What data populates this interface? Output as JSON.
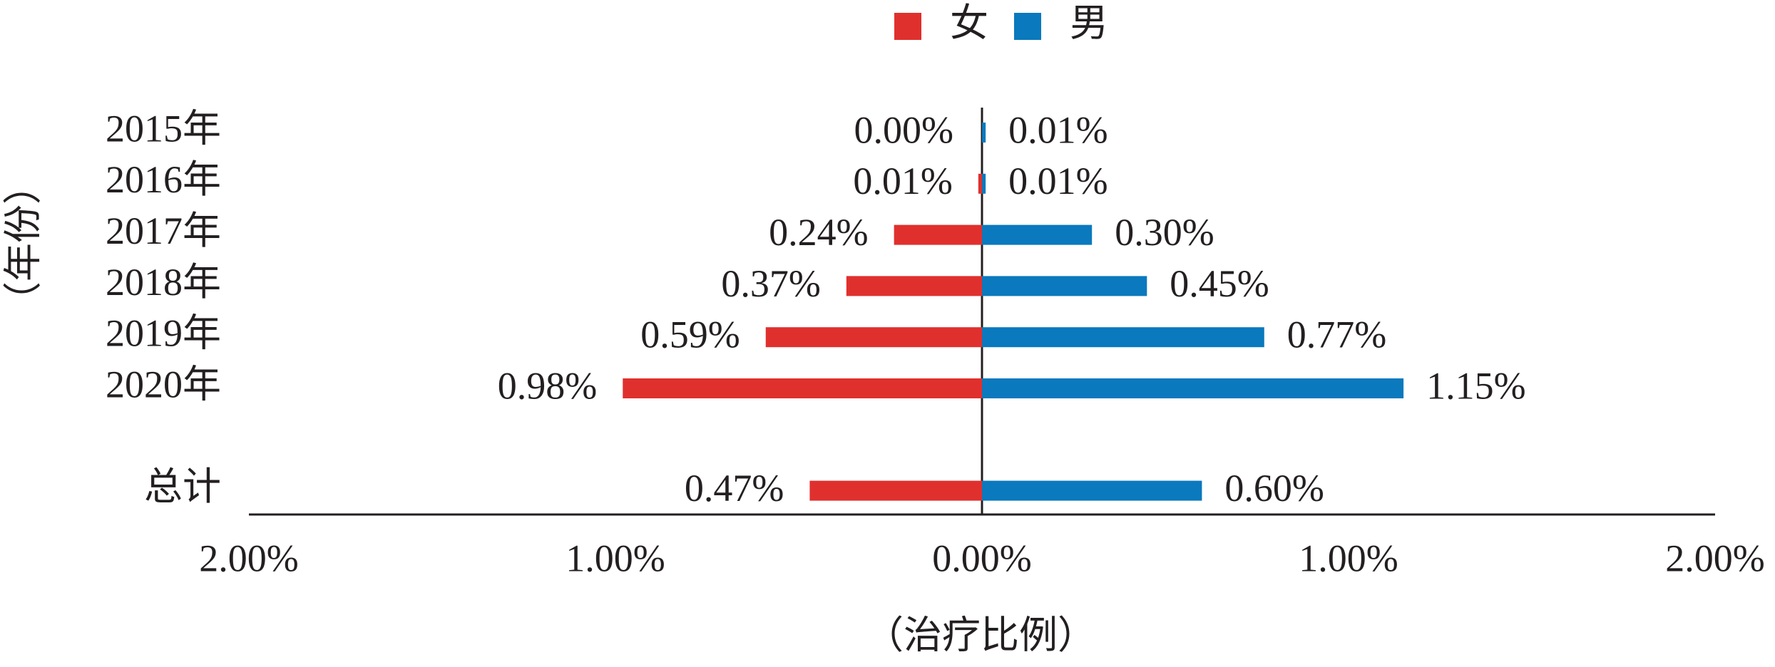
{
  "chart_data": {
    "type": "butterfly",
    "legend": "top",
    "xlabel": "（治疗比例）",
    "ylabel": "（年份）",
    "categories": [
      "2015年",
      "2016年",
      "2017年",
      "2018年",
      "2019年",
      "2020年",
      null,
      "总计"
    ],
    "series": [
      {
        "name": "女",
        "color": "#e0302d",
        "values": [
          0.0,
          0.01,
          0.24,
          0.37,
          0.59,
          0.98,
          null,
          0.47
        ],
        "value_labels": [
          "0.00%",
          "0.01%",
          "0.24%",
          "0.37%",
          "0.59%",
          "0.98%",
          null,
          "0.47%"
        ]
      },
      {
        "name": "男",
        "color": "#0a79bd",
        "values": [
          0.01,
          0.01,
          0.3,
          0.45,
          0.77,
          1.15,
          null,
          0.6
        ],
        "value_labels": [
          "0.01%",
          "0.01%",
          "0.30%",
          "0.45%",
          "0.77%",
          "1.15%",
          null,
          "0.60%"
        ]
      }
    ],
    "xlim": [
      -2,
      2
    ],
    "xticks": [
      {
        "value": -2,
        "label": "2.00%"
      },
      {
        "value": -1,
        "label": "1.00%"
      },
      {
        "value": 0,
        "label": "0.00%"
      },
      {
        "value": 1,
        "label": "1.00%"
      },
      {
        "value": 2,
        "label": "2.00%"
      }
    ]
  }
}
